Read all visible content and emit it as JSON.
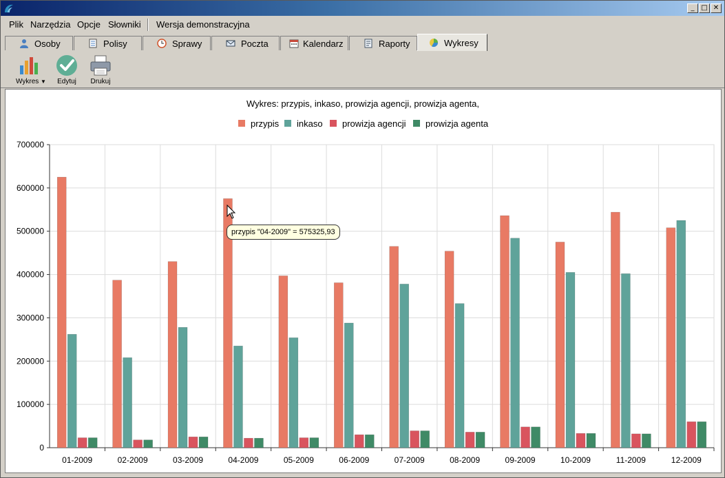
{
  "menu": {
    "items": [
      "Plik",
      "Narzędzia",
      "Opcje",
      "Słowniki"
    ],
    "demo_label": "Wersja demonstracyjna"
  },
  "tabs": [
    {
      "label": "Osoby",
      "icon": "person-icon"
    },
    {
      "label": "Polisy",
      "icon": "document-icon"
    },
    {
      "label": "Sprawy",
      "icon": "clock-icon"
    },
    {
      "label": "Poczta",
      "icon": "envelope-icon"
    },
    {
      "label": "Kalendarz",
      "icon": "calendar-icon"
    },
    {
      "label": "Raporty",
      "icon": "report-icon"
    },
    {
      "label": "Wykresy",
      "icon": "pie-chart-icon",
      "active": true
    }
  ],
  "toolbar": {
    "chart_label": "Wykres",
    "edit_label": "Edytuj",
    "print_label": "Drukuj"
  },
  "tooltip": {
    "text": "przypis \"04-2009\" = 575325,93"
  },
  "colors": {
    "przypis": "#e87a64",
    "inkaso": "#5fa39a",
    "prowizja_agencji": "#d9545e",
    "prowizja_agenta": "#3f8a66"
  },
  "chart_data": {
    "type": "bar",
    "title": "Wykres: przypis, inkaso, prowizja agencji, prowizja agenta,",
    "categories": [
      "01-2009",
      "02-2009",
      "03-2009",
      "04-2009",
      "05-2009",
      "06-2009",
      "07-2009",
      "08-2009",
      "09-2009",
      "10-2009",
      "11-2009",
      "12-2009"
    ],
    "series": [
      {
        "name": "przypis",
        "values": [
          625000,
          387000,
          430000,
          575326,
          397000,
          381000,
          465000,
          454000,
          536000,
          475000,
          544000,
          508000
        ]
      },
      {
        "name": "inkaso",
        "values": [
          262000,
          208000,
          278000,
          235000,
          254000,
          288000,
          378000,
          333000,
          484000,
          405000,
          402000,
          525000
        ]
      },
      {
        "name": "prowizja agencji",
        "values": [
          23000,
          18000,
          25000,
          22000,
          23000,
          30000,
          39000,
          36000,
          48000,
          33000,
          32000,
          60000
        ]
      },
      {
        "name": "prowizja agenta",
        "values": [
          23000,
          18000,
          25000,
          22000,
          23000,
          30000,
          39000,
          36000,
          48000,
          33000,
          32000,
          60000
        ]
      }
    ],
    "yticks": [
      "0",
      "100000",
      "200000",
      "300000",
      "400000",
      "500000",
      "600000",
      "700000"
    ],
    "ylim": [
      0,
      700000
    ],
    "grid": true,
    "legend": "top"
  }
}
